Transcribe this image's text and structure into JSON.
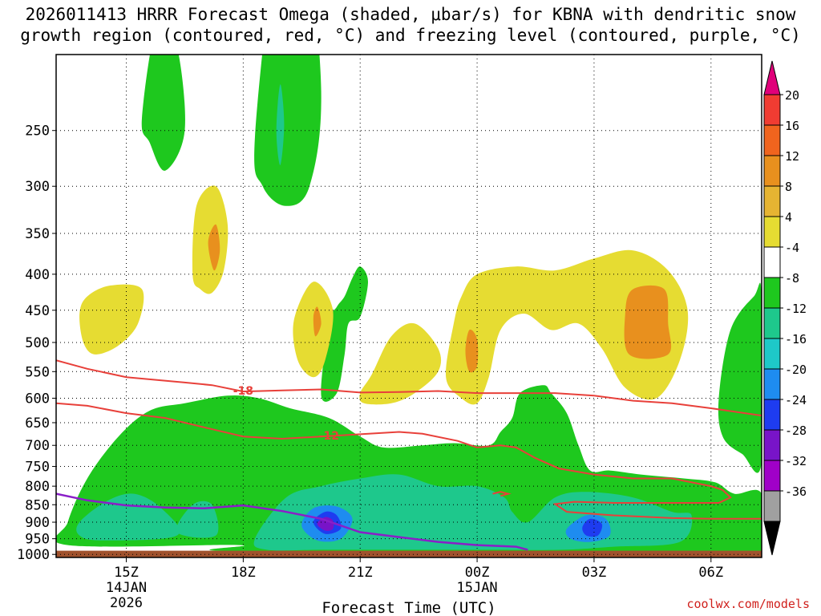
{
  "title": {
    "line1": "2026011413 HRRR Forecast Omega (shaded, μbar/s) for KBNA with dendritic snow",
    "line2": "growth region (contoured, red, °C) and freezing level (contoured, purple, °C)"
  },
  "watermark": "coolwx.com/models",
  "chart_data": {
    "type": "contour",
    "xlabel": "Forecast Time (UTC)",
    "ylabel": "",
    "x_range_hours": [
      13.2,
      31.3
    ],
    "y_axis": "pressure",
    "ylim": [
      1010,
      195
    ],
    "y_ticks": [
      250,
      300,
      350,
      400,
      450,
      500,
      550,
      600,
      650,
      700,
      750,
      800,
      850,
      900,
      950,
      1000
    ],
    "x_ticks": [
      {
        "hour": 15,
        "label": "15Z",
        "date": "14JAN",
        "year": "2026"
      },
      {
        "hour": 18,
        "label": "18Z"
      },
      {
        "hour": 21,
        "label": "21Z"
      },
      {
        "hour": 24,
        "label": "00Z",
        "date": "15JAN"
      },
      {
        "hour": 27,
        "label": "03Z"
      },
      {
        "hour": 30,
        "label": "06Z"
      }
    ],
    "colorbar": {
      "levels": [
        20,
        16,
        12,
        8,
        4,
        -4,
        -8,
        -12,
        -16,
        -20,
        -24,
        -28,
        -32,
        -36
      ],
      "colors": [
        "#e0007a",
        "#f03c32",
        "#f0641e",
        "#e8901e",
        "#e6b432",
        "#e6dc32",
        "#ffffff",
        "#1ec81e",
        "#1ec88c",
        "#1ec8c8",
        "#1e8cf0",
        "#1e3cf0",
        "#7814c8",
        "#a000c8",
        "#a0a0a0",
        "#000000"
      ]
    },
    "omega_regions": [
      {
        "level": "green",
        "points": [
          [
            13.5,
            900
          ],
          [
            14.0,
            780
          ],
          [
            14.8,
            680
          ],
          [
            15.6,
            625
          ],
          [
            16.5,
            610
          ],
          [
            17.6,
            595
          ],
          [
            18.4,
            600
          ],
          [
            19.2,
            620
          ],
          [
            20.2,
            640
          ],
          [
            21.0,
            680
          ],
          [
            21.6,
            705
          ],
          [
            22.6,
            700
          ],
          [
            23.4,
            695
          ],
          [
            24.3,
            700
          ],
          [
            24.6,
            670
          ],
          [
            24.9,
            640
          ],
          [
            25.1,
            590
          ],
          [
            25.7,
            575
          ],
          [
            25.9,
            590
          ],
          [
            26.3,
            630
          ],
          [
            26.6,
            700
          ],
          [
            26.9,
            760
          ],
          [
            27.4,
            760
          ],
          [
            28.2,
            770
          ],
          [
            29.3,
            780
          ],
          [
            30.1,
            790
          ],
          [
            30.6,
            820
          ],
          [
            31.3,
            820
          ],
          [
            31.3,
            990
          ],
          [
            18.0,
            990
          ],
          [
            17.9,
            970
          ],
          [
            13.5,
            970
          ]
        ]
      },
      {
        "level": "cyan",
        "points": [
          [
            13.8,
            900
          ],
          [
            14.5,
            840
          ],
          [
            15.2,
            820
          ],
          [
            15.9,
            860
          ],
          [
            16.3,
            940
          ],
          [
            14.4,
            955
          ],
          [
            13.8,
            940
          ]
        ]
      },
      {
        "level": "cyan",
        "points": [
          [
            16.3,
            930
          ],
          [
            16.7,
            850
          ],
          [
            17.2,
            850
          ],
          [
            17.3,
            940
          ]
        ]
      },
      {
        "level": "cyan",
        "points": [
          [
            18.3,
            950
          ],
          [
            19.1,
            830
          ],
          [
            20.0,
            800
          ],
          [
            21.0,
            780
          ],
          [
            22.0,
            770
          ],
          [
            23.0,
            800
          ],
          [
            24.0,
            800
          ],
          [
            24.7,
            830
          ],
          [
            24.9,
            870
          ],
          [
            25.3,
            900
          ],
          [
            26.0,
            830
          ],
          [
            26.8,
            815
          ],
          [
            28.0,
            830
          ],
          [
            29.0,
            870
          ],
          [
            29.5,
            880
          ],
          [
            29.2,
            960
          ],
          [
            27.5,
            975
          ],
          [
            26.2,
            985
          ],
          [
            24.5,
            985
          ],
          [
            22.0,
            985
          ],
          [
            20.0,
            985
          ],
          [
            18.6,
            985
          ]
        ]
      },
      {
        "level": "blue",
        "points": [
          [
            19.5,
            910
          ],
          [
            19.8,
            860
          ],
          [
            20.4,
            855
          ],
          [
            20.8,
            890
          ],
          [
            20.5,
            950
          ],
          [
            19.9,
            955
          ]
        ]
      },
      {
        "level": "navy",
        "points": [
          [
            19.8,
            900
          ],
          [
            20.1,
            870
          ],
          [
            20.4,
            880
          ],
          [
            20.5,
            920
          ],
          [
            20.1,
            935
          ]
        ]
      },
      {
        "level": "purple",
        "points": [
          [
            19.9,
            905
          ],
          [
            20.1,
            885
          ],
          [
            20.3,
            895
          ],
          [
            20.3,
            920
          ],
          [
            20.1,
            925
          ]
        ]
      },
      {
        "level": "blue",
        "points": [
          [
            26.3,
            920
          ],
          [
            26.8,
            880
          ],
          [
            27.3,
            890
          ],
          [
            27.4,
            940
          ],
          [
            26.9,
            960
          ],
          [
            26.4,
            950
          ]
        ]
      },
      {
        "level": "navy",
        "points": [
          [
            26.7,
            915
          ],
          [
            26.9,
            890
          ],
          [
            27.2,
            905
          ],
          [
            27.1,
            940
          ],
          [
            26.8,
            940
          ]
        ]
      },
      {
        "level": "green",
        "points": [
          [
            15.4,
            240
          ],
          [
            15.8,
            175
          ],
          [
            16.3,
            190
          ],
          [
            16.5,
            250
          ],
          [
            16.0,
            285
          ],
          [
            15.6,
            260
          ]
        ]
      },
      {
        "level": "green",
        "points": [
          [
            18.3,
            255
          ],
          [
            18.9,
            120
          ],
          [
            19.3,
            80
          ],
          [
            19.6,
            120
          ],
          [
            20.0,
            220
          ],
          [
            19.7,
            300
          ],
          [
            19.1,
            320
          ],
          [
            18.5,
            300
          ]
        ]
      },
      {
        "level": "cyan",
        "points": [
          [
            18.85,
            250
          ],
          [
            18.95,
            215
          ],
          [
            19.05,
            245
          ],
          [
            18.95,
            280
          ]
        ]
      },
      {
        "level": "green",
        "points": [
          [
            17.0,
            385
          ],
          [
            17.05,
            350
          ],
          [
            17.1,
            390
          ]
        ]
      },
      {
        "level": "green",
        "points": [
          [
            20.0,
            595
          ],
          [
            20.2,
            470
          ],
          [
            20.4,
            445
          ],
          [
            20.6,
            430
          ],
          [
            20.8,
            405
          ],
          [
            21.0,
            390
          ],
          [
            21.2,
            410
          ],
          [
            21.0,
            460
          ],
          [
            20.7,
            470
          ],
          [
            20.6,
            520
          ],
          [
            20.4,
            590
          ]
        ]
      },
      {
        "level": "green",
        "points": [
          [
            30.2,
            600
          ],
          [
            30.5,
            480
          ],
          [
            31.1,
            430
          ],
          [
            31.3,
            430
          ],
          [
            31.3,
            740
          ],
          [
            30.8,
            720
          ],
          [
            30.3,
            680
          ]
        ]
      },
      {
        "level": "yellow",
        "points": [
          [
            13.8,
            455
          ],
          [
            14.0,
            430
          ],
          [
            14.6,
            415
          ],
          [
            15.4,
            420
          ],
          [
            15.3,
            470
          ],
          [
            14.8,
            505
          ],
          [
            14.2,
            520
          ],
          [
            13.9,
            500
          ]
        ]
      },
      {
        "level": "yellow",
        "points": [
          [
            16.7,
            400
          ],
          [
            16.8,
            320
          ],
          [
            17.3,
            300
          ],
          [
            17.6,
            340
          ],
          [
            17.5,
            395
          ],
          [
            17.2,
            425
          ],
          [
            16.9,
            420
          ]
        ]
      },
      {
        "level": "orange",
        "points": [
          [
            17.1,
            360
          ],
          [
            17.3,
            340
          ],
          [
            17.4,
            370
          ],
          [
            17.25,
            395
          ]
        ]
      },
      {
        "level": "yellow",
        "points": [
          [
            19.3,
            465
          ],
          [
            19.8,
            410
          ],
          [
            20.3,
            450
          ],
          [
            20.1,
            530
          ],
          [
            19.8,
            560
          ],
          [
            19.4,
            530
          ]
        ]
      },
      {
        "level": "orange",
        "points": [
          [
            19.8,
            460
          ],
          [
            19.9,
            445
          ],
          [
            20.0,
            470
          ],
          [
            19.85,
            490
          ]
        ]
      },
      {
        "level": "yellow",
        "points": [
          [
            21.0,
            590
          ],
          [
            21.3,
            555
          ],
          [
            21.8,
            490
          ],
          [
            22.4,
            470
          ],
          [
            23.0,
            510
          ],
          [
            23.0,
            550
          ],
          [
            22.4,
            590
          ],
          [
            21.8,
            610
          ],
          [
            21.1,
            610
          ]
        ]
      },
      {
        "level": "yellow",
        "points": [
          [
            23.2,
            560
          ],
          [
            23.4,
            470
          ],
          [
            23.6,
            430
          ],
          [
            24.0,
            400
          ],
          [
            25.0,
            390
          ],
          [
            26.0,
            395
          ],
          [
            27.0,
            380
          ],
          [
            28.0,
            370
          ],
          [
            28.9,
            395
          ],
          [
            29.4,
            450
          ],
          [
            29.2,
            530
          ],
          [
            28.6,
            600
          ],
          [
            27.8,
            580
          ],
          [
            27.2,
            510
          ],
          [
            26.6,
            470
          ],
          [
            25.9,
            480
          ],
          [
            25.2,
            455
          ],
          [
            24.6,
            480
          ],
          [
            24.3,
            560
          ],
          [
            24.0,
            610
          ],
          [
            23.6,
            600
          ]
        ]
      },
      {
        "level": "orange",
        "points": [
          [
            23.7,
            515
          ],
          [
            23.8,
            480
          ],
          [
            24.0,
            495
          ],
          [
            24.0,
            540
          ],
          [
            23.8,
            550
          ]
        ]
      },
      {
        "level": "orange",
        "points": [
          [
            27.8,
            455
          ],
          [
            28.0,
            420
          ],
          [
            28.8,
            420
          ],
          [
            28.9,
            470
          ],
          [
            28.9,
            520
          ],
          [
            27.9,
            520
          ]
        ]
      }
    ],
    "dgz_contours": [
      {
        "label": "-18",
        "label_hour": 18.0,
        "label_pressure": 585,
        "points": [
          [
            13.2,
            530
          ],
          [
            14.0,
            545
          ],
          [
            15.0,
            560
          ],
          [
            16.5,
            570
          ],
          [
            17.2,
            575
          ],
          [
            18.0,
            587
          ],
          [
            19.0,
            585
          ],
          [
            20.0,
            583
          ],
          [
            21.0,
            589
          ],
          [
            22.0,
            588
          ],
          [
            23.0,
            586
          ],
          [
            24.0,
            590
          ],
          [
            25.0,
            590
          ],
          [
            26.0,
            590
          ],
          [
            27.0,
            595
          ],
          [
            28.0,
            605
          ],
          [
            29.0,
            610
          ],
          [
            30.0,
            620
          ],
          [
            31.3,
            635
          ]
        ]
      },
      {
        "label": "-12",
        "label_hour": 20.2,
        "label_pressure": 678,
        "points": [
          [
            13.2,
            610
          ],
          [
            14.0,
            615
          ],
          [
            15.0,
            630
          ],
          [
            16.0,
            640
          ],
          [
            17.0,
            660
          ],
          [
            18.0,
            680
          ],
          [
            19.0,
            685
          ],
          [
            20.0,
            680
          ],
          [
            21.0,
            675
          ],
          [
            22.0,
            670
          ],
          [
            22.6,
            674
          ],
          [
            23.5,
            690
          ],
          [
            24.0,
            705
          ],
          [
            24.6,
            700
          ],
          [
            25.0,
            705
          ],
          [
            25.5,
            730
          ],
          [
            26.1,
            755
          ],
          [
            27.0,
            770
          ],
          [
            28.0,
            780
          ],
          [
            29.0,
            780
          ],
          [
            30.0,
            800
          ],
          [
            30.3,
            810
          ],
          [
            30.5,
            830
          ],
          [
            30.2,
            845
          ],
          [
            29.5,
            845
          ],
          [
            28.5,
            845
          ],
          [
            27.5,
            845
          ],
          [
            26.5,
            842
          ],
          [
            26.0,
            848
          ],
          [
            26.3,
            870
          ],
          [
            27.5,
            880
          ],
          [
            29.0,
            888
          ],
          [
            30.0,
            890
          ],
          [
            31.3,
            890
          ]
        ]
      },
      {
        "label": "",
        "label_hour": 24.6,
        "label_pressure": 820,
        "points": [
          [
            24.4,
            820
          ],
          [
            24.6,
            815
          ],
          [
            24.8,
            820
          ],
          [
            24.6,
            826
          ]
        ]
      }
    ],
    "freezing_level": {
      "label": "",
      "points": [
        [
          13.2,
          820
        ],
        [
          14.0,
          838
        ],
        [
          15.0,
          852
        ],
        [
          16.0,
          858
        ],
        [
          17.0,
          860
        ],
        [
          18.0,
          852
        ],
        [
          19.0,
          868
        ],
        [
          20.0,
          890
        ],
        [
          21.0,
          930
        ],
        [
          22.0,
          945
        ],
        [
          23.0,
          960
        ],
        [
          24.0,
          970
        ],
        [
          25.0,
          975
        ],
        [
          25.3,
          985
        ]
      ]
    },
    "surface_band_pressure": [
      988,
      1010
    ]
  }
}
